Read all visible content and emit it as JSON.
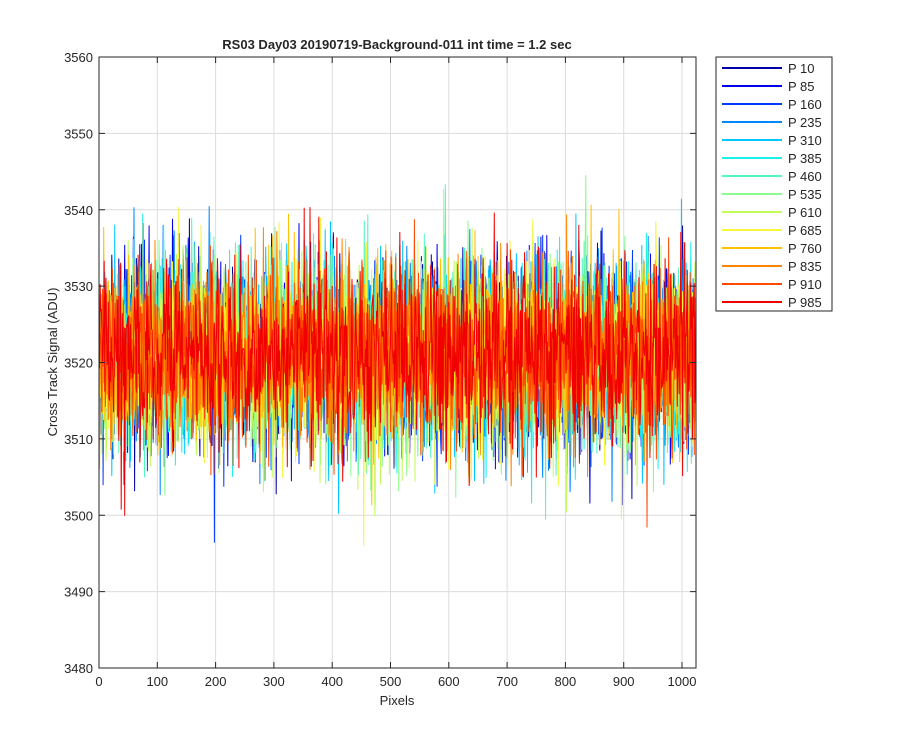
{
  "chart_data": {
    "type": "line",
    "title": "RS03 Day03 20190719-Background-011 int time = 1.2 sec",
    "xlabel": "Pixels",
    "ylabel": "Cross Track Signal (ADU)",
    "xlim": [
      0,
      1024
    ],
    "ylim": [
      3480,
      3560
    ],
    "x_ticks": [
      0,
      100,
      200,
      300,
      400,
      500,
      600,
      700,
      800,
      900,
      1000
    ],
    "y_ticks": [
      3480,
      3490,
      3500,
      3510,
      3520,
      3530,
      3540,
      3550,
      3560
    ],
    "grid": true,
    "legend_position": "outside-top-right",
    "x_range": [
      1,
      1024
    ],
    "signal_center": 3521,
    "signal_spread": 8,
    "series": [
      {
        "name": "P 10",
        "color": "#0000a8"
      },
      {
        "name": "P 85",
        "color": "#0000f0"
      },
      {
        "name": "P 160",
        "color": "#0039ff"
      },
      {
        "name": "P 235",
        "color": "#0088ff"
      },
      {
        "name": "P 310",
        "color": "#00c6ff"
      },
      {
        "name": "P 385",
        "color": "#1ef0ee"
      },
      {
        "name": "P 460",
        "color": "#52f7be"
      },
      {
        "name": "P 535",
        "color": "#8bfb8e"
      },
      {
        "name": "P 610",
        "color": "#c2fb5a"
      },
      {
        "name": "P 685",
        "color": "#f6f63c"
      },
      {
        "name": "P 760",
        "color": "#ffc000"
      },
      {
        "name": "P 835",
        "color": "#ff8400"
      },
      {
        "name": "P 910",
        "color": "#ff4800"
      },
      {
        "name": "P 985",
        "color": "#f00000"
      }
    ]
  }
}
